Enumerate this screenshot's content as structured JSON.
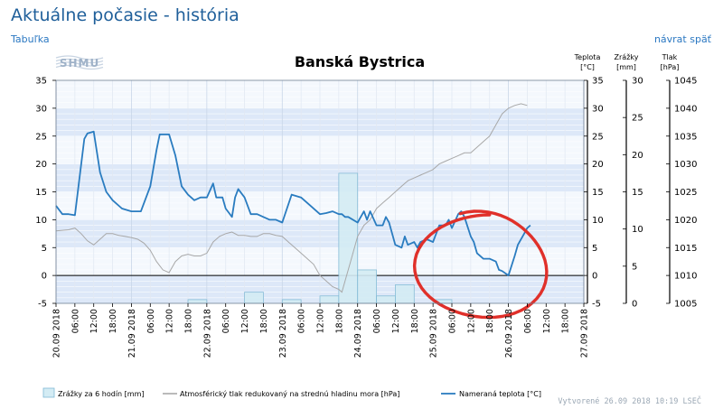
{
  "header": {
    "title": "Aktuálne počasie - história",
    "table_link": "Tabuľka",
    "back_link": "návrat späť"
  },
  "logo_text": "SHMU",
  "footer": {
    "created": "Vytvorené 26.09 2018 10:19 LSEČ"
  },
  "colors": {
    "temperature": "#2a7cc0",
    "pressure": "#a8a8a8",
    "precip_fill": "#d4ecf4",
    "precip_stroke": "#7fb9d5",
    "band": "#dde8f8",
    "annotation": "#e0302a"
  },
  "chart_data": {
    "type": "line",
    "title": "Banská Bystrica",
    "x": {
      "start": "20.09 2018 00:00",
      "end": "27.09 2018 00:00",
      "tick_labels": [
        "20.09 2018",
        "06:00",
        "12:00",
        "18:00",
        "21.09 2018",
        "06:00",
        "12:00",
        "18:00",
        "22.09 2018",
        "06:00",
        "12:00",
        "18:00",
        "23.09 2018",
        "06:00",
        "12:00",
        "18:00",
        "24.09 2018",
        "06:00",
        "12:00",
        "18:00",
        "25.09 2018",
        "06:00",
        "12:00",
        "18:00",
        "26.09 2018",
        "06:00",
        "12:00",
        "18:00",
        "27.09 2018"
      ]
    },
    "axes": {
      "temperature_left": {
        "ylim": [
          -5,
          35
        ],
        "ticks": [
          -5,
          0,
          5,
          10,
          15,
          20,
          25,
          30,
          35
        ]
      },
      "temperature_right": {
        "label_top": "Teplota",
        "label_unit": "[°C]",
        "ylim": [
          -5,
          35
        ],
        "ticks": [
          -5,
          0,
          5,
          10,
          15,
          20,
          25,
          30,
          35
        ]
      },
      "precipitation": {
        "label_top": "Zrážky",
        "label_unit": "[mm]",
        "ylim": [
          0,
          30
        ],
        "ticks": [
          0,
          5,
          10,
          15,
          20,
          25,
          30
        ]
      },
      "pressure": {
        "label_top": "Tlak",
        "label_unit": "[hPa]",
        "ylim": [
          1005,
          1045
        ],
        "ticks": [
          1005,
          1010,
          1015,
          1020,
          1025,
          1030,
          1035,
          1040,
          1045
        ]
      }
    },
    "legend": [
      {
        "key": "precip",
        "label": "Zrážky za 6 hodín [mm]"
      },
      {
        "key": "pressure",
        "label": "Atmosférický tlak redukovaný na strednú hladinu mora [hPa]"
      },
      {
        "key": "temperature",
        "label": "Nameraná teplota [°C]"
      }
    ],
    "legend_position": "bottom",
    "grid": true,
    "series": {
      "temperature": {
        "hours": [
          0,
          2,
          4,
          6,
          9,
          10,
          12,
          14,
          16,
          18,
          21,
          24,
          27,
          30,
          32,
          33,
          36,
          38,
          40,
          42,
          44,
          46,
          48,
          50,
          51,
          53,
          54,
          56,
          57,
          58,
          60,
          62,
          64,
          66,
          68,
          70,
          72,
          75,
          78,
          81,
          84,
          86,
          88,
          90,
          91,
          92,
          93,
          96,
          98,
          99,
          100,
          102,
          104,
          105,
          106,
          108,
          110,
          111,
          112,
          114,
          115,
          116,
          118,
          120,
          122,
          124,
          125,
          126,
          128,
          129,
          130,
          132,
          133,
          134,
          136,
          138,
          140,
          141,
          142,
          144,
          146,
          147,
          149,
          150,
          151
        ],
        "values": [
          12.5,
          11,
          11,
          10.8,
          24.5,
          25.5,
          25.8,
          18.5,
          15,
          13.5,
          12,
          11.5,
          11.5,
          16,
          22.5,
          25.3,
          25.3,
          21.5,
          16,
          14.5,
          13.5,
          14,
          14,
          16.5,
          14,
          14,
          12,
          10.5,
          14,
          15.5,
          14,
          11,
          11,
          10.5,
          10,
          10,
          9.5,
          14.5,
          14,
          12.5,
          11,
          11.2,
          11.5,
          11,
          11,
          10.5,
          10.5,
          9.5,
          11.5,
          10,
          11.5,
          9,
          9,
          10.5,
          9.5,
          5.5,
          5,
          7,
          5.5,
          6,
          5,
          6,
          6.5,
          6,
          9,
          9,
          10,
          8.5,
          11,
          11.5,
          10.5,
          7,
          6,
          4,
          3,
          3,
          2.5,
          1,
          0.8,
          0,
          3.5,
          5.5,
          7.5,
          8.5,
          9
        ]
      },
      "pressure": {
        "hours": [
          0,
          4,
          6,
          8,
          10,
          12,
          14,
          16,
          18,
          20,
          22,
          24,
          26,
          28,
          30,
          32,
          34,
          36,
          38,
          40,
          42,
          44,
          46,
          48,
          50,
          52,
          54,
          56,
          58,
          60,
          62,
          64,
          66,
          68,
          70,
          72,
          74,
          76,
          78,
          80,
          82,
          84,
          86,
          88,
          90,
          91,
          92,
          94,
          96,
          98,
          100,
          102,
          104,
          106,
          108,
          110,
          112,
          114,
          116,
          118,
          120,
          122,
          124,
          126,
          128,
          130,
          132,
          134,
          136,
          138,
          140,
          142,
          144,
          146,
          148,
          150
        ],
        "values": [
          1018,
          1018.2,
          1018.5,
          1017.5,
          1016.2,
          1015.5,
          1016.5,
          1017.5,
          1017.5,
          1017.2,
          1017,
          1016.8,
          1016.5,
          1015.8,
          1014.5,
          1012.5,
          1011,
          1010.5,
          1012.5,
          1013.5,
          1013.8,
          1013.5,
          1013.5,
          1014,
          1016,
          1017,
          1017.5,
          1017.8,
          1017.2,
          1017.2,
          1017,
          1017,
          1017.5,
          1017.5,
          1017.2,
          1017,
          1016,
          1015,
          1014,
          1013,
          1012,
          1010,
          1009,
          1008,
          1007.5,
          1007,
          1009,
          1013,
          1017,
          1019,
          1020,
          1022,
          1023,
          1024,
          1025,
          1026,
          1027,
          1027.5,
          1028,
          1028.5,
          1029,
          1030,
          1030.5,
          1031,
          1031.5,
          1032,
          1032,
          1033,
          1034,
          1035,
          1037,
          1039,
          1040,
          1040.5,
          1040.8,
          1040.5
        ]
      },
      "precipitation": {
        "periods": [
          {
            "start_hour": 42,
            "end_hour": 48,
            "value": 0.5
          },
          {
            "start_hour": 60,
            "end_hour": 66,
            "value": 1.5
          },
          {
            "start_hour": 72,
            "end_hour": 78,
            "value": 0.5
          },
          {
            "start_hour": 84,
            "end_hour": 90,
            "value": 1
          },
          {
            "start_hour": 90,
            "end_hour": 96,
            "value": 17.5
          },
          {
            "start_hour": 96,
            "end_hour": 102,
            "value": 4.5
          },
          {
            "start_hour": 102,
            "end_hour": 108,
            "value": 1
          },
          {
            "start_hour": 108,
            "end_hour": 114,
            "value": 2.5
          },
          {
            "start_hour": 120,
            "end_hour": 126,
            "value": 0.5
          }
        ]
      }
    },
    "zero_line": 0,
    "annotation": {
      "shape": "hand-drawn-circle",
      "around_hours": [
        118,
        152
      ],
      "around_temp": [
        -7,
        11
      ]
    }
  }
}
